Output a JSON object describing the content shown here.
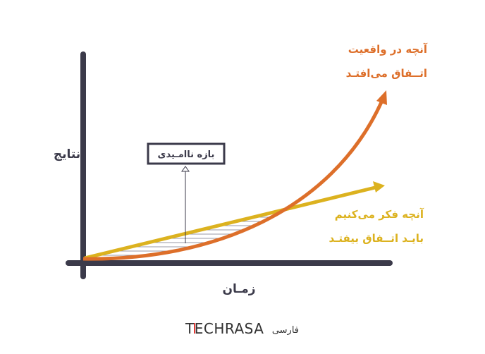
{
  "diagram": {
    "y_axis_label": "نتایج",
    "x_axis_label": "زمـان",
    "reality_label": [
      "آنچه در واقعیت",
      "اتــفاق می‌افتـد"
    ],
    "expectation_label": [
      "آنچه فکر می‌کنیم",
      "بایـد اتــفاق بیفتـد"
    ],
    "gap_label": "بازه ناامـیدی",
    "colors": {
      "axis": "#3b3a4a",
      "reality": "#dd6f2a",
      "expectation": "#dcb21f",
      "hatch": "#9a9aa6"
    }
  },
  "footer": {
    "logo_text": "TECHRASA",
    "logo_suffix": "فارسی"
  }
}
